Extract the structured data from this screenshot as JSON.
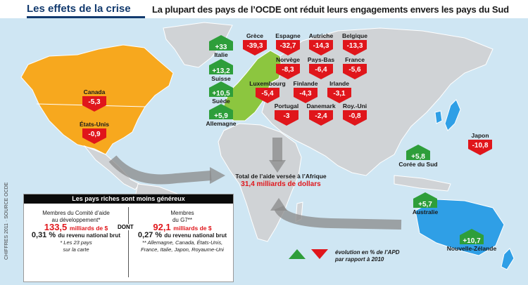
{
  "header": {
    "title": "Les effets de la crise",
    "subtitle": "La plupart des pays de l’OCDE ont réduit leurs engagements envers les pays du Sud"
  },
  "colors": {
    "increase": "#2e9e3a",
    "decrease": "#e0161b",
    "usa": "#f7a81e",
    "europe": "#8cc63f",
    "oceania": "#2f9fe6",
    "land": "#d0d3d6",
    "sea": "#cfe6f3"
  },
  "countries": [
    {
      "name": "Grèce",
      "value": "-39,3",
      "dir": "down"
    },
    {
      "name": "Espagne",
      "value": "-32,7",
      "dir": "down"
    },
    {
      "name": "Autriche",
      "value": "-14,3",
      "dir": "down"
    },
    {
      "name": "Belgique",
      "value": "-13,3",
      "dir": "down"
    },
    {
      "name": "Norvège",
      "value": "-8,3",
      "dir": "down"
    },
    {
      "name": "Pays-Bas",
      "value": "-6,4",
      "dir": "down"
    },
    {
      "name": "France",
      "value": "-5,6",
      "dir": "down"
    },
    {
      "name": "Luxembourg",
      "value": "-5,4",
      "dir": "down"
    },
    {
      "name": "Finlande",
      "value": "-4,3",
      "dir": "down"
    },
    {
      "name": "Irlande",
      "value": "-3,1",
      "dir": "down"
    },
    {
      "name": "Portugal",
      "value": "-3",
      "dir": "down"
    },
    {
      "name": "Danemark",
      "value": "-2,4",
      "dir": "down"
    },
    {
      "name": "Roy.-Uni",
      "value": "-0,8",
      "dir": "down"
    },
    {
      "name": "Italie",
      "value": "+33",
      "dir": "up"
    },
    {
      "name": "Suisse",
      "value": "+13,2",
      "dir": "up"
    },
    {
      "name": "Suède",
      "value": "+10,5",
      "dir": "up"
    },
    {
      "name": "Allemagne",
      "value": "+5,9",
      "dir": "up"
    },
    {
      "name": "Canada",
      "value": "-5,3",
      "dir": "down"
    },
    {
      "name": "États-Unis",
      "value": "-0,9",
      "dir": "down"
    },
    {
      "name": "Japon",
      "value": "-10,8",
      "dir": "down"
    },
    {
      "name": "Corée du Sud",
      "value": "+5,8",
      "dir": "up"
    },
    {
      "name": "Australie",
      "value": "+5,7",
      "dir": "up"
    },
    {
      "name": "Nouvelle-Zélande",
      "value": "+10,7",
      "dir": "up"
    }
  ],
  "africa": {
    "label": "Total de l’aide versée à l’Afrique",
    "value": "31,4 milliards de dollars"
  },
  "box": {
    "title": "Les pays riches sont moins généreux",
    "left": {
      "line1": "Membres du Comité d’aide",
      "line2": "au développement*",
      "amount": "133,5",
      "amount_unit": "milliards de $",
      "pct": "0,31 %",
      "pct_label": "du revenu national brut",
      "note1": "* Les 23 pays",
      "note2": "sur la carte"
    },
    "dont": "DONT",
    "right": {
      "line1": "Membres",
      "line2": "du G7**",
      "amount": "92,1",
      "amount_unit": "milliards de $",
      "pct": "0,27 %",
      "pct_label": "du revenu national brut",
      "note1": "** Allemagne, Canada, États-Unis,",
      "note2": "France, Italie, Japon, Royaume-Uni"
    }
  },
  "legend": {
    "line1": "évolution en % de l’APD",
    "line2": "par rapport à 2010"
  },
  "credit": "CHIFFRES 2011 · SOURCE OCDE"
}
